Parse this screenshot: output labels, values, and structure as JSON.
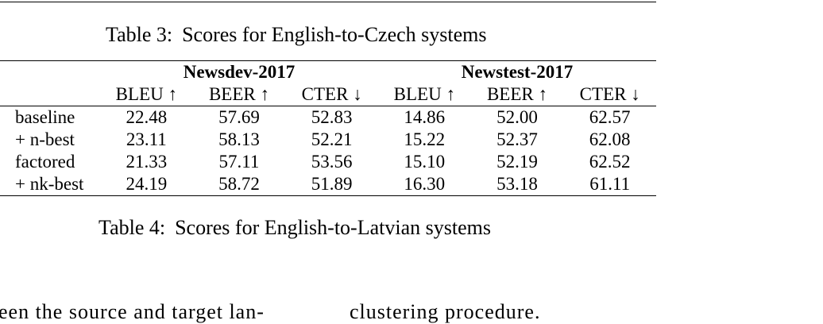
{
  "table3": {
    "number": "Table 3:",
    "title": "Scores for English-to-Czech systems"
  },
  "table4": {
    "number": "Table 4:",
    "title": "Scores for English-to-Latvian systems",
    "groups": [
      "Newsdev-2017",
      "Newstest-2017"
    ],
    "metrics": [
      "BLEU ↑",
      "BEER ↑",
      "CTER ↓",
      "BLEU ↑",
      "BEER ↑",
      "CTER ↓"
    ],
    "rows": [
      {
        "system": "baseline",
        "system_bold": true,
        "values": [
          "22.48",
          "57.69",
          "52.83",
          "14.86",
          "52.00",
          "62.57"
        ],
        "values_bold": false
      },
      {
        "system": "+ n-best",
        "system_bold": false,
        "values": [
          "23.11",
          "58.13",
          "52.21",
          "15.22",
          "52.37",
          "62.08"
        ],
        "values_bold": false
      },
      {
        "system": "factored",
        "system_bold": true,
        "values": [
          "21.33",
          "57.11",
          "53.56",
          "15.10",
          "52.19",
          "62.52"
        ],
        "values_bold": false
      },
      {
        "system": "+ nk-best",
        "system_bold": false,
        "values": [
          "24.19",
          "58.72",
          "51.89",
          "16.30",
          "53.18",
          "61.11"
        ],
        "values_bold": true
      }
    ]
  },
  "body_text": {
    "left_fragment": "een the source and target lan-",
    "right_fragment": "clustering procedure."
  }
}
